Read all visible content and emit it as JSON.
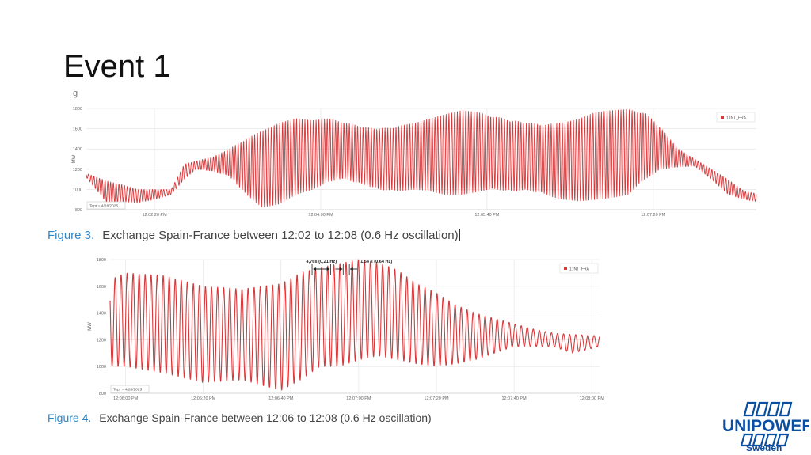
{
  "slide": {
    "title": "Event 1",
    "cut_text": "g"
  },
  "captions": [
    {
      "figure": "Figure 3.",
      "text": "Exchange Spain-France between 12:02 to 12:08 (0.6 Hz oscillation)"
    },
    {
      "figure": "Figure 4.",
      "text": "Exchange Spain-France between 12:06 to 12:08 (0.6 Hz oscillation)"
    }
  ],
  "logo": {
    "brand": "UNIPOWER",
    "sub": "Sweden",
    "color": "#0b4fa3"
  },
  "colors": {
    "series": "#d9383a",
    "grid": "#e2e2e2",
    "caption_accent": "#2e88c8"
  },
  "chart_data": [
    {
      "type": "line",
      "title": "",
      "ylabel": "MW",
      "ylim": [
        800,
        1800
      ],
      "yticks": [
        800,
        1000,
        1200,
        1400,
        1600,
        1800
      ],
      "x_tick_labels": [
        "12:02:20 PM",
        "12:04:00 PM",
        "12:05:40 PM",
        "12:07:20 PM"
      ],
      "x_tick_seconds": [
        140,
        240,
        340,
        440
      ],
      "xlim_seconds": [
        99,
        502
      ],
      "time_box": "Tepr = 4/28/2025",
      "legend": "top-right",
      "oscillation_hz": 0.6,
      "envelope": {
        "t": [
          99,
          112,
          120,
          130,
          140,
          150,
          158,
          165,
          175,
          185,
          195,
          205,
          215,
          225,
          235,
          245,
          255,
          265,
          275,
          285,
          295,
          305,
          315,
          325,
          335,
          345,
          355,
          365,
          375,
          385,
          395,
          405,
          415,
          425,
          435,
          445,
          455,
          465,
          475,
          485,
          495,
          502
        ],
        "min": [
          1120,
          850,
          880,
          870,
          900,
          950,
          1100,
          1200,
          1180,
          1130,
          950,
          820,
          850,
          950,
          1000,
          1080,
          1100,
          1050,
          1000,
          980,
          1000,
          980,
          950,
          950,
          980,
          1000,
          980,
          990,
          950,
          900,
          880,
          900,
          920,
          950,
          1100,
          1200,
          1220,
          1230,
          1100,
          950,
          900,
          880
        ],
        "max": [
          1160,
          1080,
          1050,
          1000,
          1000,
          1000,
          1250,
          1280,
          1320,
          1400,
          1500,
          1580,
          1660,
          1700,
          1680,
          1700,
          1660,
          1620,
          1600,
          1620,
          1650,
          1700,
          1740,
          1780,
          1760,
          1720,
          1680,
          1660,
          1640,
          1660,
          1700,
          1760,
          1780,
          1790,
          1760,
          1600,
          1400,
          1300,
          1200,
          1100,
          980,
          960
        ]
      },
      "series": [
        {
          "name": "1:INT_FRA"
        }
      ]
    },
    {
      "type": "line",
      "title": "",
      "ylabel": "MW",
      "ylim": [
        800,
        1800
      ],
      "yticks": [
        800,
        1000,
        1200,
        1400,
        1600,
        1800
      ],
      "x_tick_labels": [
        "12:06:00 PM",
        "12:06:20 PM",
        "12:06:40 PM",
        "12:07:00 PM",
        "12:07:20 PM",
        "12:07:40 PM",
        "12:08:00 PM"
      ],
      "x_tick_seconds": [
        0,
        20,
        40,
        60,
        80,
        100,
        120
      ],
      "xlim_seconds": [
        -4,
        122
      ],
      "time_box": "Tepr = 4/28/2025",
      "legend": "top-right",
      "oscillation_hz": 0.64,
      "envelope": {
        "t": [
          -4,
          0,
          10,
          20,
          30,
          40,
          45,
          50,
          55,
          60,
          65,
          70,
          75,
          80,
          85,
          90,
          95,
          100,
          105,
          110,
          115,
          122
        ],
        "min": [
          1000,
          1000,
          950,
          880,
          900,
          820,
          900,
          1000,
          1000,
          1050,
          1080,
          1050,
          1020,
          1000,
          1020,
          1050,
          1100,
          1150,
          1150,
          1150,
          1100,
          1150
        ],
        "max": [
          1650,
          1700,
          1680,
          1600,
          1580,
          1620,
          1700,
          1740,
          1770,
          1800,
          1780,
          1720,
          1620,
          1550,
          1460,
          1400,
          1360,
          1320,
          1280,
          1250,
          1240,
          1230
        ]
      },
      "annotations": [
        "4,76s (0,21 Hz)",
        "1,54 s (0,64 Hz)"
      ],
      "series": [
        {
          "name": "1:INT_FRA"
        }
      ]
    }
  ]
}
